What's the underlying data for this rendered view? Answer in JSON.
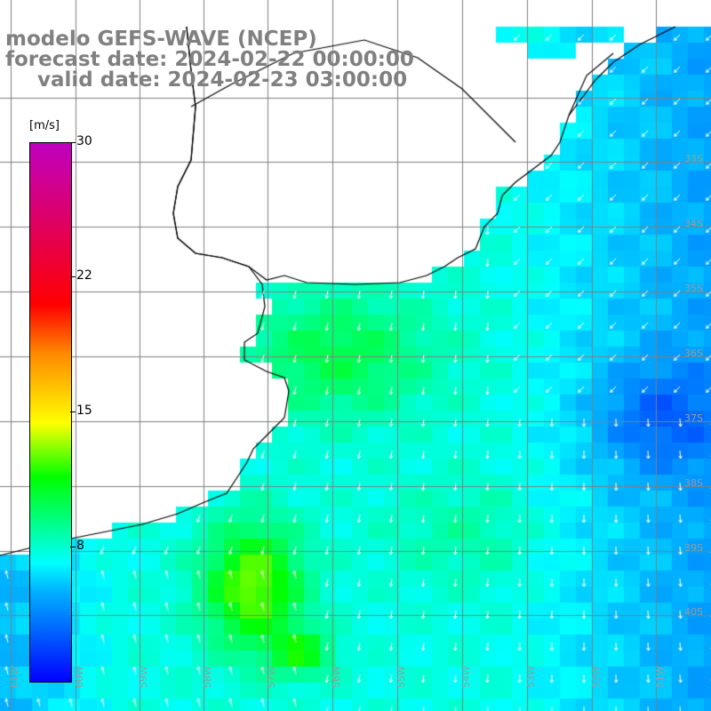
{
  "title": {
    "model": "modelo GEFS-WAVE (NCEP)",
    "forecast": "forecast date: 2024-02-22 00:00:00",
    "valid": "valid date: 2024-02-23 03:00:00"
  },
  "colorbar": {
    "unit": "[m/s]",
    "ticks": [
      "30",
      "22",
      "15",
      "8"
    ],
    "tick_values": [
      30,
      22,
      15,
      8
    ],
    "range": [
      0,
      30
    ],
    "colors": [
      "#0000ff",
      "#00b4ff",
      "#00ffff",
      "#00ff00",
      "#ffff00",
      "#ff8800",
      "#ff0000",
      "#c000c0"
    ]
  },
  "map": {
    "region": "Rio de la Plata / Uruguay / Buenos Aires coast",
    "lat_labels": [
      "33S",
      "34S",
      "35S",
      "36S",
      "37S",
      "38S",
      "39S",
      "40S"
    ],
    "lon_labels": [
      "61W",
      "60W",
      "59W",
      "58W",
      "57W",
      "56W",
      "55W",
      "54W",
      "53W",
      "52W",
      "51W"
    ],
    "grid_color": "#7f7f7f",
    "coast_color": "#000000",
    "arrow_color": "#ffffff"
  }
}
